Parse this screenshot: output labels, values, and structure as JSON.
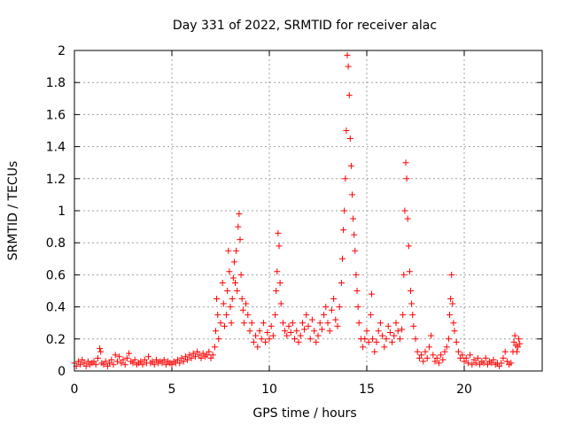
{
  "chart_data": {
    "type": "scatter",
    "title": "Day 331 of 2022, SRMTID for receiver alac",
    "xlabel": "GPS time / hours",
    "ylabel": "SRMTID / TECUs",
    "xlim": [
      0,
      24
    ],
    "ylim": [
      0,
      2
    ],
    "x_ticks": [
      0,
      5,
      10,
      15,
      20
    ],
    "x_tick_labels": [
      "0",
      "5",
      "10",
      "15",
      "20"
    ],
    "y_ticks": [
      0,
      0.2,
      0.4,
      0.6,
      0.8,
      1.0,
      1.2,
      1.4,
      1.6,
      1.8,
      2.0
    ],
    "y_tick_labels": [
      "0",
      "0.2",
      "0.4",
      "0.6",
      "0.8",
      "1",
      "1.2",
      "1.4",
      "1.6",
      "1.8",
      "2"
    ],
    "grid": true,
    "marker": "+",
    "series": [
      {
        "name": "SRMTID",
        "color": "#ff0000",
        "points": [
          [
            0.0,
            0.05
          ],
          [
            0.1,
            0.03
          ],
          [
            0.2,
            0.06
          ],
          [
            0.3,
            0.04
          ],
          [
            0.4,
            0.07
          ],
          [
            0.5,
            0.05
          ],
          [
            0.6,
            0.03
          ],
          [
            0.7,
            0.06
          ],
          [
            0.8,
            0.04
          ],
          [
            0.9,
            0.05
          ],
          [
            1.0,
            0.06
          ],
          [
            1.1,
            0.04
          ],
          [
            1.2,
            0.08
          ],
          [
            1.3,
            0.14
          ],
          [
            1.35,
            0.12
          ],
          [
            1.4,
            0.05
          ],
          [
            1.5,
            0.04
          ],
          [
            1.6,
            0.06
          ],
          [
            1.7,
            0.03
          ],
          [
            1.8,
            0.05
          ],
          [
            1.9,
            0.07
          ],
          [
            2.0,
            0.04
          ],
          [
            2.1,
            0.1
          ],
          [
            2.2,
            0.06
          ],
          [
            2.3,
            0.09
          ],
          [
            2.4,
            0.05
          ],
          [
            2.5,
            0.07
          ],
          [
            2.6,
            0.04
          ],
          [
            2.7,
            0.08
          ],
          [
            2.8,
            0.11
          ],
          [
            2.9,
            0.06
          ],
          [
            3.0,
            0.05
          ],
          [
            3.1,
            0.07
          ],
          [
            3.2,
            0.04
          ],
          [
            3.3,
            0.05
          ],
          [
            3.4,
            0.06
          ],
          [
            3.5,
            0.04
          ],
          [
            3.6,
            0.07
          ],
          [
            3.7,
            0.05
          ],
          [
            3.8,
            0.09
          ],
          [
            3.9,
            0.05
          ],
          [
            4.0,
            0.06
          ],
          [
            4.1,
            0.04
          ],
          [
            4.2,
            0.07
          ],
          [
            4.3,
            0.05
          ],
          [
            4.4,
            0.06
          ],
          [
            4.5,
            0.05
          ],
          [
            4.6,
            0.07
          ],
          [
            4.7,
            0.04
          ],
          [
            4.8,
            0.06
          ],
          [
            4.9,
            0.05
          ],
          [
            5.0,
            0.04
          ],
          [
            5.1,
            0.06
          ],
          [
            5.2,
            0.05
          ],
          [
            5.3,
            0.07
          ],
          [
            5.4,
            0.05
          ],
          [
            5.5,
            0.08
          ],
          [
            5.6,
            0.06
          ],
          [
            5.7,
            0.09
          ],
          [
            5.8,
            0.07
          ],
          [
            5.9,
            0.1
          ],
          [
            6.0,
            0.08
          ],
          [
            6.1,
            0.11
          ],
          [
            6.2,
            0.09
          ],
          [
            6.3,
            0.12
          ],
          [
            6.4,
            0.1
          ],
          [
            6.5,
            0.08
          ],
          [
            6.6,
            0.11
          ],
          [
            6.7,
            0.09
          ],
          [
            6.8,
            0.1
          ],
          [
            6.9,
            0.12
          ],
          [
            7.0,
            0.08
          ],
          [
            7.1,
            0.1
          ],
          [
            7.2,
            0.15
          ],
          [
            7.25,
            0.25
          ],
          [
            7.3,
            0.45
          ],
          [
            7.35,
            0.35
          ],
          [
            7.4,
            0.2
          ],
          [
            7.5,
            0.3
          ],
          [
            7.6,
            0.55
          ],
          [
            7.65,
            0.42
          ],
          [
            7.7,
            0.28
          ],
          [
            7.8,
            0.35
          ],
          [
            7.85,
            0.5
          ],
          [
            7.9,
            0.75
          ],
          [
            7.95,
            0.62
          ],
          [
            8.0,
            0.4
          ],
          [
            8.05,
            0.3
          ],
          [
            8.1,
            0.45
          ],
          [
            8.15,
            0.58
          ],
          [
            8.2,
            0.68
          ],
          [
            8.25,
            0.55
          ],
          [
            8.3,
            0.75
          ],
          [
            8.35,
            0.5
          ],
          [
            8.4,
            0.9
          ],
          [
            8.45,
            0.98
          ],
          [
            8.5,
            0.82
          ],
          [
            8.55,
            0.6
          ],
          [
            8.6,
            0.45
          ],
          [
            8.65,
            0.38
          ],
          [
            8.7,
            0.3
          ],
          [
            8.8,
            0.42
          ],
          [
            8.9,
            0.35
          ],
          [
            9.0,
            0.25
          ],
          [
            9.1,
            0.3
          ],
          [
            9.2,
            0.18
          ],
          [
            9.3,
            0.22
          ],
          [
            9.4,
            0.15
          ],
          [
            9.5,
            0.25
          ],
          [
            9.6,
            0.2
          ],
          [
            9.7,
            0.3
          ],
          [
            9.8,
            0.18
          ],
          [
            9.9,
            0.24
          ],
          [
            10.0,
            0.2
          ],
          [
            10.1,
            0.28
          ],
          [
            10.2,
            0.22
          ],
          [
            10.3,
            0.35
          ],
          [
            10.35,
            0.5
          ],
          [
            10.4,
            0.62
          ],
          [
            10.45,
            0.86
          ],
          [
            10.5,
            0.78
          ],
          [
            10.55,
            0.55
          ],
          [
            10.6,
            0.42
          ],
          [
            10.7,
            0.3
          ],
          [
            10.8,
            0.25
          ],
          [
            10.9,
            0.22
          ],
          [
            11.0,
            0.28
          ],
          [
            11.1,
            0.24
          ],
          [
            11.2,
            0.3
          ],
          [
            11.3,
            0.2
          ],
          [
            11.4,
            0.25
          ],
          [
            11.5,
            0.18
          ],
          [
            11.6,
            0.22
          ],
          [
            11.7,
            0.3
          ],
          [
            11.8,
            0.26
          ],
          [
            11.9,
            0.35
          ],
          [
            12.0,
            0.28
          ],
          [
            12.1,
            0.2
          ],
          [
            12.2,
            0.32
          ],
          [
            12.3,
            0.25
          ],
          [
            12.4,
            0.18
          ],
          [
            12.5,
            0.22
          ],
          [
            12.6,
            0.3
          ],
          [
            12.7,
            0.26
          ],
          [
            12.8,
            0.35
          ],
          [
            12.9,
            0.4
          ],
          [
            13.0,
            0.3
          ],
          [
            13.1,
            0.25
          ],
          [
            13.2,
            0.38
          ],
          [
            13.3,
            0.45
          ],
          [
            13.4,
            0.32
          ],
          [
            13.5,
            0.28
          ],
          [
            13.6,
            0.4
          ],
          [
            13.7,
            0.55
          ],
          [
            13.75,
            0.7
          ],
          [
            13.8,
            0.88
          ],
          [
            13.85,
            1.0
          ],
          [
            13.9,
            1.2
          ],
          [
            13.95,
            1.5
          ],
          [
            14.0,
            1.97
          ],
          [
            14.05,
            1.9
          ],
          [
            14.1,
            1.72
          ],
          [
            14.15,
            1.45
          ],
          [
            14.2,
            1.28
          ],
          [
            14.25,
            1.1
          ],
          [
            14.3,
            0.95
          ],
          [
            14.35,
            0.85
          ],
          [
            14.4,
            0.75
          ],
          [
            14.45,
            0.6
          ],
          [
            14.5,
            0.5
          ],
          [
            14.55,
            0.4
          ],
          [
            14.6,
            0.3
          ],
          [
            14.7,
            0.2
          ],
          [
            14.8,
            0.15
          ],
          [
            14.9,
            0.2
          ],
          [
            15.0,
            0.25
          ],
          [
            15.1,
            0.18
          ],
          [
            15.2,
            0.35
          ],
          [
            15.25,
            0.48
          ],
          [
            15.3,
            0.2
          ],
          [
            15.4,
            0.12
          ],
          [
            15.5,
            0.18
          ],
          [
            15.6,
            0.25
          ],
          [
            15.7,
            0.3
          ],
          [
            15.8,
            0.22
          ],
          [
            15.9,
            0.15
          ],
          [
            16.0,
            0.2
          ],
          [
            16.1,
            0.28
          ],
          [
            16.2,
            0.24
          ],
          [
            16.3,
            0.18
          ],
          [
            16.4,
            0.22
          ],
          [
            16.5,
            0.3
          ],
          [
            16.6,
            0.25
          ],
          [
            16.7,
            0.2
          ],
          [
            16.8,
            0.26
          ],
          [
            16.85,
            0.35
          ],
          [
            16.9,
            0.6
          ],
          [
            16.95,
            1.0
          ],
          [
            17.0,
            1.3
          ],
          [
            17.05,
            1.2
          ],
          [
            17.1,
            0.95
          ],
          [
            17.15,
            0.78
          ],
          [
            17.2,
            0.62
          ],
          [
            17.25,
            0.5
          ],
          [
            17.3,
            0.42
          ],
          [
            17.35,
            0.35
          ],
          [
            17.4,
            0.28
          ],
          [
            17.5,
            0.2
          ],
          [
            17.6,
            0.12
          ],
          [
            17.7,
            0.08
          ],
          [
            17.8,
            0.1
          ],
          [
            17.9,
            0.06
          ],
          [
            18.0,
            0.12
          ],
          [
            18.1,
            0.08
          ],
          [
            18.2,
            0.15
          ],
          [
            18.3,
            0.22
          ],
          [
            18.4,
            0.1
          ],
          [
            18.5,
            0.06
          ],
          [
            18.6,
            0.08
          ],
          [
            18.7,
            0.05
          ],
          [
            18.8,
            0.1
          ],
          [
            18.9,
            0.07
          ],
          [
            19.0,
            0.12
          ],
          [
            19.1,
            0.15
          ],
          [
            19.2,
            0.2
          ],
          [
            19.25,
            0.35
          ],
          [
            19.3,
            0.45
          ],
          [
            19.35,
            0.6
          ],
          [
            19.4,
            0.42
          ],
          [
            19.45,
            0.3
          ],
          [
            19.5,
            0.25
          ],
          [
            19.6,
            0.18
          ],
          [
            19.7,
            0.12
          ],
          [
            19.8,
            0.08
          ],
          [
            19.9,
            0.1
          ],
          [
            20.0,
            0.06
          ],
          [
            20.1,
            0.08
          ],
          [
            20.2,
            0.05
          ],
          [
            20.3,
            0.1
          ],
          [
            20.4,
            0.04
          ],
          [
            20.5,
            0.07
          ],
          [
            20.6,
            0.05
          ],
          [
            20.7,
            0.08
          ],
          [
            20.8,
            0.04
          ],
          [
            20.9,
            0.06
          ],
          [
            21.0,
            0.05
          ],
          [
            21.1,
            0.08
          ],
          [
            21.2,
            0.04
          ],
          [
            21.3,
            0.06
          ],
          [
            21.4,
            0.05
          ],
          [
            21.5,
            0.07
          ],
          [
            21.6,
            0.04
          ],
          [
            21.7,
            0.05
          ],
          [
            21.8,
            0.03
          ],
          [
            21.9,
            0.05
          ],
          [
            22.0,
            0.08
          ],
          [
            22.1,
            0.12
          ],
          [
            22.2,
            0.06
          ],
          [
            22.3,
            0.04
          ],
          [
            22.4,
            0.05
          ],
          [
            22.5,
            0.12
          ],
          [
            22.55,
            0.18
          ],
          [
            22.6,
            0.22
          ],
          [
            22.65,
            0.16
          ],
          [
            22.7,
            0.12
          ],
          [
            22.75,
            0.15
          ],
          [
            22.8,
            0.2
          ],
          [
            22.85,
            0.17
          ]
        ]
      }
    ]
  }
}
